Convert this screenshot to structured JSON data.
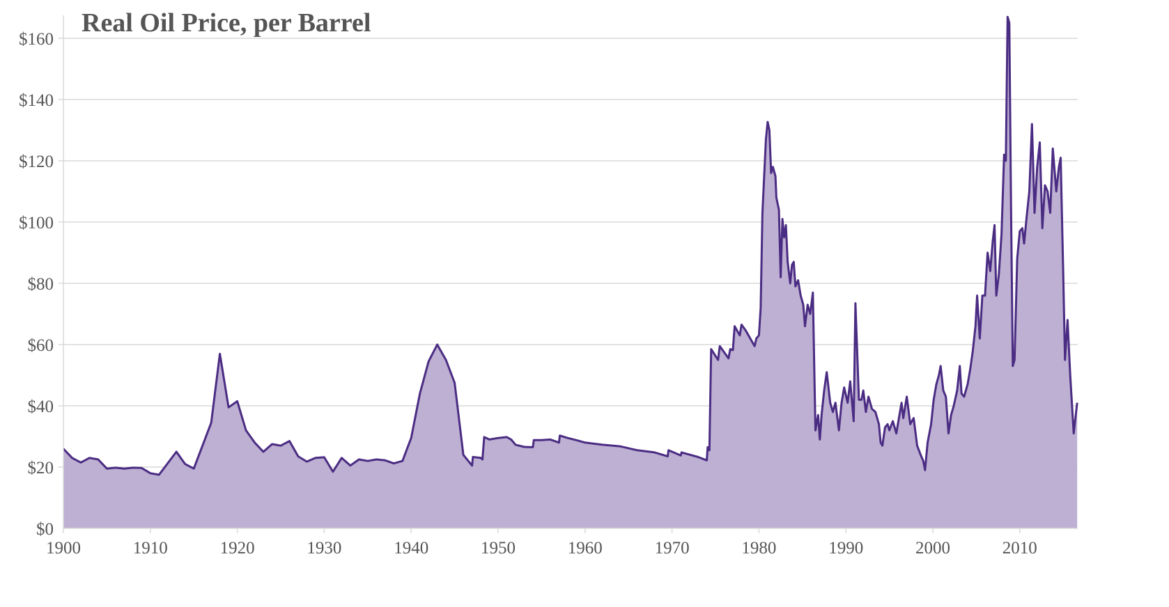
{
  "chart_data": {
    "type": "area",
    "title": "Real Oil Price, per Barrel",
    "xlabel": "",
    "ylabel": "",
    "xlim": [
      1900,
      2016.7
    ],
    "ylim": [
      0,
      168
    ],
    "grid": true,
    "x_ticks": [
      "1900",
      "1910",
      "1920",
      "1930",
      "1940",
      "1950",
      "1960",
      "1970",
      "1980",
      "1990",
      "2000",
      "2010"
    ],
    "x_tick_values": [
      1900,
      1910,
      1920,
      1930,
      1940,
      1950,
      1960,
      1970,
      1980,
      1990,
      2000,
      2010
    ],
    "y_ticks": [
      "$0",
      "$20",
      "$40",
      "$60",
      "$80",
      "$100",
      "$120",
      "$140",
      "$160"
    ],
    "y_tick_values": [
      0,
      20,
      40,
      60,
      80,
      100,
      120,
      140,
      160
    ],
    "colors": {
      "line": "#4b2c83",
      "fill": "#bdb0d2",
      "grid": "#d9d9d9",
      "text": "#555555"
    },
    "series": [
      {
        "name": "Real Oil Price",
        "points": [
          [
            1900,
            26
          ],
          [
            1901,
            23
          ],
          [
            1902,
            21.5
          ],
          [
            1903,
            23
          ],
          [
            1904,
            22.5
          ],
          [
            1905,
            19.5
          ],
          [
            1906,
            19.8
          ],
          [
            1907,
            19.5
          ],
          [
            1908,
            19.8
          ],
          [
            1909,
            19.7
          ],
          [
            1910,
            18
          ],
          [
            1911,
            17.5
          ],
          [
            1913,
            25
          ],
          [
            1914,
            21
          ],
          [
            1915,
            19.5
          ],
          [
            1916,
            27
          ],
          [
            1917,
            34.5
          ],
          [
            1918,
            57
          ],
          [
            1919,
            39.5
          ],
          [
            1920,
            41.5
          ],
          [
            1921,
            32
          ],
          [
            1922,
            28
          ],
          [
            1923,
            25
          ],
          [
            1924,
            27.5
          ],
          [
            1925,
            27
          ],
          [
            1926,
            28.5
          ],
          [
            1927,
            23.5
          ],
          [
            1928,
            21.8
          ],
          [
            1929,
            23
          ],
          [
            1930,
            23.2
          ],
          [
            1931,
            18.5
          ],
          [
            1932,
            23
          ],
          [
            1933,
            20.5
          ],
          [
            1934,
            22.5
          ],
          [
            1935,
            22
          ],
          [
            1936,
            22.5
          ],
          [
            1937,
            22.2
          ],
          [
            1938,
            21.2
          ],
          [
            1939,
            22
          ],
          [
            1940,
            29.5
          ],
          [
            1941,
            44
          ],
          [
            1942,
            54.5
          ],
          [
            1943,
            60
          ],
          [
            1944,
            55
          ],
          [
            1945,
            47.5
          ],
          [
            1946,
            24
          ],
          [
            1947,
            20.5
          ],
          [
            1947.1,
            23.3
          ],
          [
            1948,
            23
          ],
          [
            1948.2,
            22.5
          ],
          [
            1948.4,
            29.8
          ],
          [
            1949,
            29
          ],
          [
            1950,
            29.5
          ],
          [
            1951,
            29.8
          ],
          [
            1951.5,
            29
          ],
          [
            1952,
            27.3
          ],
          [
            1953,
            26.6
          ],
          [
            1954,
            26.5
          ],
          [
            1954.1,
            28.8
          ],
          [
            1955,
            28.8
          ],
          [
            1956,
            29
          ],
          [
            1957,
            28
          ],
          [
            1957.1,
            30.3
          ],
          [
            1958,
            29.5
          ],
          [
            1959,
            28.8
          ],
          [
            1960,
            28
          ],
          [
            1962,
            27.3
          ],
          [
            1964,
            26.8
          ],
          [
            1966,
            25.5
          ],
          [
            1968,
            24.8
          ],
          [
            1969.5,
            23.5
          ],
          [
            1969.6,
            25.5
          ],
          [
            1971,
            23.8
          ],
          [
            1971.1,
            24.8
          ],
          [
            1973,
            23.3
          ],
          [
            1974,
            22.2
          ],
          [
            1974.1,
            26.5
          ],
          [
            1974.3,
            25.5
          ],
          [
            1974.5,
            58.5
          ],
          [
            1975.3,
            55
          ],
          [
            1975.5,
            59.5
          ],
          [
            1976.5,
            55.5
          ],
          [
            1976.7,
            58.5
          ],
          [
            1977,
            58.2
          ],
          [
            1977.2,
            66
          ],
          [
            1977.8,
            63
          ],
          [
            1978,
            66.5
          ],
          [
            1978.5,
            64.5
          ],
          [
            1979.5,
            59.5
          ],
          [
            1979.7,
            62
          ],
          [
            1980,
            63
          ],
          [
            1980.2,
            72
          ],
          [
            1980.4,
            103
          ],
          [
            1980.6,
            115
          ],
          [
            1980.8,
            127
          ],
          [
            1981,
            132.7
          ],
          [
            1981.2,
            130
          ],
          [
            1981.4,
            116
          ],
          [
            1981.6,
            118
          ],
          [
            1981.9,
            115
          ],
          [
            1982,
            108
          ],
          [
            1982.3,
            104
          ],
          [
            1982.5,
            82
          ],
          [
            1982.7,
            101
          ],
          [
            1982.9,
            95
          ],
          [
            1983.1,
            99
          ],
          [
            1983.3,
            87
          ],
          [
            1983.6,
            80
          ],
          [
            1983.8,
            86
          ],
          [
            1984,
            87
          ],
          [
            1984.2,
            79
          ],
          [
            1984.5,
            81
          ],
          [
            1984.8,
            76
          ],
          [
            1985.1,
            73
          ],
          [
            1985.3,
            66
          ],
          [
            1985.6,
            73
          ],
          [
            1985.9,
            70
          ],
          [
            1986.2,
            77
          ],
          [
            1986.5,
            32
          ],
          [
            1986.8,
            37
          ],
          [
            1987,
            29
          ],
          [
            1987.2,
            37
          ],
          [
            1987.5,
            45
          ],
          [
            1987.8,
            51
          ],
          [
            1988.2,
            41
          ],
          [
            1988.5,
            38
          ],
          [
            1988.8,
            41
          ],
          [
            1989.2,
            32
          ],
          [
            1989.5,
            41
          ],
          [
            1989.8,
            46
          ],
          [
            1990.2,
            41
          ],
          [
            1990.5,
            48
          ],
          [
            1990.9,
            35
          ],
          [
            1991.1,
            73.5
          ],
          [
            1991.5,
            42
          ],
          [
            1991.8,
            42
          ],
          [
            1992,
            45
          ],
          [
            1992.3,
            38
          ],
          [
            1992.6,
            43
          ],
          [
            1993,
            39
          ],
          [
            1993.4,
            38
          ],
          [
            1993.8,
            34
          ],
          [
            1994,
            28
          ],
          [
            1994.2,
            27
          ],
          [
            1994.5,
            33
          ],
          [
            1994.8,
            34
          ],
          [
            1995,
            32
          ],
          [
            1995.4,
            35
          ],
          [
            1995.8,
            31
          ],
          [
            1996.1,
            36
          ],
          [
            1996.4,
            41
          ],
          [
            1996.6,
            36
          ],
          [
            1997,
            43
          ],
          [
            1997.4,
            34
          ],
          [
            1997.8,
            36
          ],
          [
            1998.2,
            27
          ],
          [
            1998.6,
            24
          ],
          [
            1998.9,
            22
          ],
          [
            1999.1,
            19
          ],
          [
            1999.4,
            28
          ],
          [
            1999.8,
            34
          ],
          [
            2000.1,
            42
          ],
          [
            2000.4,
            47
          ],
          [
            2000.7,
            50
          ],
          [
            2000.9,
            53
          ],
          [
            2001.2,
            45
          ],
          [
            2001.5,
            43
          ],
          [
            2001.8,
            31
          ],
          [
            2002.1,
            37
          ],
          [
            2002.4,
            40
          ],
          [
            2002.8,
            45
          ],
          [
            2003.1,
            53
          ],
          [
            2003.3,
            44
          ],
          [
            2003.6,
            43
          ],
          [
            2004,
            47
          ],
          [
            2004.3,
            52
          ],
          [
            2004.6,
            58
          ],
          [
            2004.9,
            66
          ],
          [
            2005.1,
            76
          ],
          [
            2005.4,
            62
          ],
          [
            2005.7,
            76
          ],
          [
            2006,
            76
          ],
          [
            2006.3,
            90
          ],
          [
            2006.6,
            84
          ],
          [
            2006.9,
            94
          ],
          [
            2007.1,
            99
          ],
          [
            2007.3,
            76
          ],
          [
            2007.6,
            83
          ],
          [
            2007.9,
            96
          ],
          [
            2008.2,
            122
          ],
          [
            2008.4,
            120
          ],
          [
            2008.6,
            167
          ],
          [
            2008.8,
            165
          ],
          [
            2009,
            104
          ],
          [
            2009.2,
            53
          ],
          [
            2009.4,
            55
          ],
          [
            2009.7,
            88
          ],
          [
            2010,
            97
          ],
          [
            2010.3,
            98
          ],
          [
            2010.5,
            93
          ],
          [
            2010.8,
            102
          ],
          [
            2011.1,
            110
          ],
          [
            2011.4,
            132
          ],
          [
            2011.7,
            103
          ],
          [
            2012,
            118
          ],
          [
            2012.3,
            126
          ],
          [
            2012.6,
            98
          ],
          [
            2012.9,
            112
          ],
          [
            2013.2,
            110
          ],
          [
            2013.5,
            103
          ],
          [
            2013.8,
            124
          ],
          [
            2014.2,
            110
          ],
          [
            2014.5,
            118
          ],
          [
            2014.7,
            121
          ],
          [
            2015,
            83
          ],
          [
            2015.2,
            55
          ],
          [
            2015.5,
            68
          ],
          [
            2015.8,
            50
          ],
          [
            2016.2,
            31
          ],
          [
            2016.6,
            41
          ]
        ]
      }
    ]
  }
}
